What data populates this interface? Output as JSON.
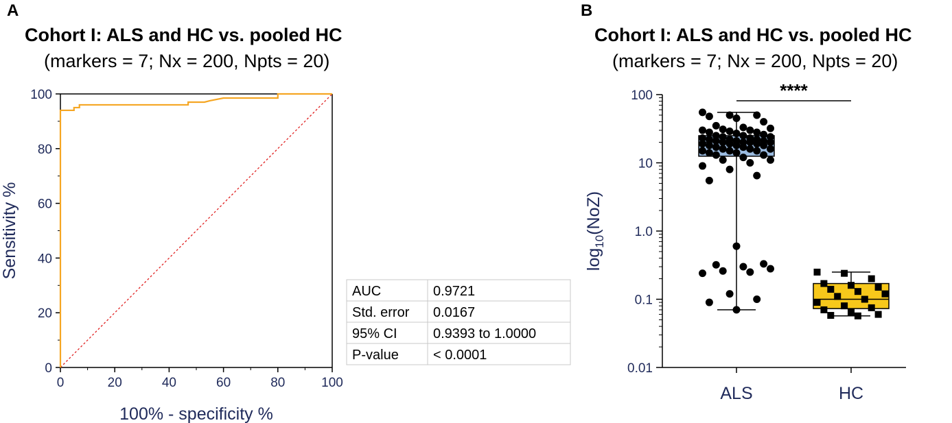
{
  "panels": {
    "a": {
      "letter": "A",
      "title": "Cohort I: ALS and HC vs. pooled HC",
      "subtitle": "(markers = 7; Nx = 200, Npts = 20)"
    },
    "b": {
      "letter": "B",
      "title": "Cohort I: ALS and HC vs. pooled HC",
      "subtitle": "(markers = 7; Nx = 200, Npts = 20)"
    }
  },
  "chart_data": [
    {
      "type": "line",
      "xlabel": "100% - specificity %",
      "ylabel": "Sensitivity %",
      "xlim": [
        0,
        100
      ],
      "ylim": [
        0,
        100
      ],
      "xticks": [
        "0",
        "20",
        "40",
        "60",
        "80",
        "100"
      ],
      "yticks": [
        "0",
        "20",
        "40",
        "60",
        "80",
        "100"
      ],
      "series": [
        {
          "color": "#f5a623",
          "x": [
            0,
            0,
            5,
            5,
            7,
            7,
            47,
            47,
            53,
            55,
            60,
            80,
            80,
            100
          ],
          "y": [
            0,
            94,
            94,
            95,
            95,
            96,
            96,
            97,
            97,
            97.5,
            98.5,
            98.5,
            100,
            100
          ]
        },
        {
          "color": "#e02020",
          "style": "dotted",
          "x": [
            0,
            100
          ],
          "y": [
            0,
            100
          ]
        }
      ],
      "table": [
        [
          "AUC",
          "0.9721"
        ],
        [
          "Std. error",
          "0.0167"
        ],
        [
          "95% CI",
          "0.9393 to 1.0000"
        ],
        [
          "P-value",
          "< 0.0001"
        ]
      ]
    },
    {
      "type": "box",
      "ylabel_main": "log",
      "ylabel_sub": "10",
      "ylabel_tail": "(NoZ)",
      "yscale": "log",
      "ylim": [
        0.01,
        100
      ],
      "yticks": [
        {
          "v": 0.01,
          "label": "0.01"
        },
        {
          "v": 0.1,
          "label": "0.1"
        },
        {
          "v": 1,
          "label": "1.0"
        },
        {
          "v": 10,
          "label": "10"
        },
        {
          "v": 100,
          "label": "100"
        }
      ],
      "categories": [
        "ALS",
        "HC"
      ],
      "significance": "****",
      "boxes": [
        {
          "category": "ALS",
          "color": "#9bbbe0",
          "min": 0.07,
          "q1": 12.5,
          "median": 20,
          "q3": 25,
          "max": 55,
          "marker": "circle",
          "points": [
            55,
            50,
            50,
            48,
            45,
            40,
            35,
            33,
            32,
            31,
            30,
            30,
            29,
            28,
            28,
            27,
            26,
            25,
            25,
            24,
            24,
            23,
            23,
            22,
            22,
            22,
            21,
            21,
            21,
            20,
            20,
            20,
            20,
            19,
            19,
            19,
            18,
            18,
            18,
            17,
            17,
            16,
            16,
            16,
            15,
            15,
            15,
            14,
            14,
            13,
            13,
            12,
            11,
            11,
            10,
            9,
            8,
            6.5,
            5.5,
            0.6,
            0.33,
            0.32,
            0.3,
            0.28,
            0.26,
            0.25,
            0.24,
            0.12,
            0.1,
            0.09,
            0.07
          ]
        },
        {
          "category": "HC",
          "color": "#f7c81b",
          "min": 0.057,
          "q1": 0.073,
          "median": 0.1,
          "q3": 0.17,
          "max": 0.25,
          "marker": "square",
          "points": [
            0.25,
            0.24,
            0.2,
            0.17,
            0.16,
            0.15,
            0.14,
            0.13,
            0.12,
            0.11,
            0.1,
            0.09,
            0.08,
            0.075,
            0.07,
            0.065,
            0.06,
            0.058,
            0.057
          ]
        }
      ]
    }
  ]
}
